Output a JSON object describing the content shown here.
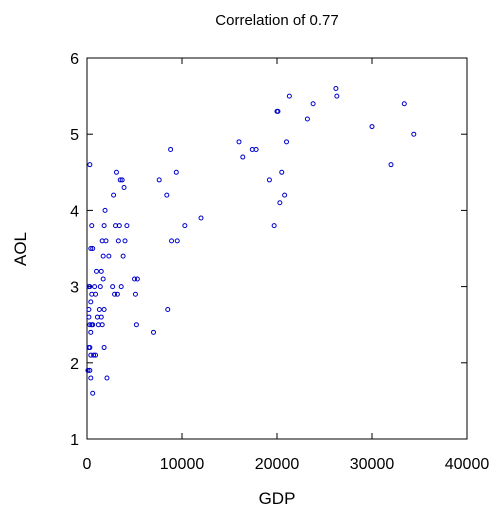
{
  "chart_data": {
    "type": "scatter",
    "title": "Correlation of 0.77",
    "xlabel": "GDP",
    "ylabel": "AOL",
    "xlim": [
      0,
      40000
    ],
    "ylim": [
      1,
      6
    ],
    "xticks": [
      0,
      10000,
      20000,
      30000,
      40000
    ],
    "yticks": [
      1,
      2,
      3,
      4,
      5,
      6
    ],
    "grid": false,
    "marker_color": "#0000cc",
    "points": [
      [
        300,
        4.6
      ],
      [
        500,
        3.8
      ],
      [
        400,
        3.5
      ],
      [
        600,
        3.5
      ],
      [
        200,
        3.0
      ],
      [
        300,
        3.0
      ],
      [
        500,
        2.9
      ],
      [
        400,
        2.8
      ],
      [
        200,
        2.7
      ],
      [
        300,
        2.5
      ],
      [
        500,
        2.5
      ],
      [
        600,
        2.5
      ],
      [
        400,
        2.4
      ],
      [
        200,
        2.2
      ],
      [
        300,
        2.2
      ],
      [
        400,
        2.1
      ],
      [
        700,
        2.1
      ],
      [
        300,
        1.9
      ],
      [
        100,
        1.9
      ],
      [
        400,
        1.8
      ],
      [
        600,
        1.6
      ],
      [
        200,
        2.6
      ],
      [
        800,
        3.0
      ],
      [
        900,
        2.9
      ],
      [
        1000,
        3.2
      ],
      [
        1100,
        2.6
      ],
      [
        1200,
        2.5
      ],
      [
        1300,
        2.7
      ],
      [
        1500,
        2.6
      ],
      [
        1600,
        2.5
      ],
      [
        1700,
        3.4
      ],
      [
        1800,
        3.8
      ],
      [
        1900,
        4.0
      ],
      [
        1600,
        3.6
      ],
      [
        1700,
        3.1
      ],
      [
        2000,
        3.6
      ],
      [
        1500,
        3.2
      ],
      [
        1800,
        2.7
      ],
      [
        900,
        2.1
      ],
      [
        1400,
        3.0
      ],
      [
        2100,
        1.8
      ],
      [
        1800,
        2.2
      ],
      [
        2300,
        3.4
      ],
      [
        2700,
        3.0
      ],
      [
        3000,
        3.8
      ],
      [
        3100,
        4.5
      ],
      [
        3400,
        3.8
      ],
      [
        3300,
        3.6
      ],
      [
        3500,
        4.4
      ],
      [
        3700,
        4.4
      ],
      [
        3800,
        3.4
      ],
      [
        3600,
        3.0
      ],
      [
        3900,
        4.3
      ],
      [
        4000,
        3.6
      ],
      [
        4200,
        3.8
      ],
      [
        3200,
        2.9
      ],
      [
        2900,
        2.9
      ],
      [
        2800,
        4.2
      ],
      [
        5000,
        3.1
      ],
      [
        5300,
        3.1
      ],
      [
        5100,
        2.9
      ],
      [
        5200,
        2.5
      ],
      [
        7000,
        2.4
      ],
      [
        8500,
        2.7
      ],
      [
        7600,
        4.4
      ],
      [
        8400,
        4.2
      ],
      [
        8800,
        4.8
      ],
      [
        9400,
        4.5
      ],
      [
        8900,
        3.6
      ],
      [
        9500,
        3.6
      ],
      [
        10300,
        3.8
      ],
      [
        12000,
        3.9
      ],
      [
        16000,
        4.9
      ],
      [
        16400,
        4.7
      ],
      [
        17400,
        4.8
      ],
      [
        17800,
        4.8
      ],
      [
        19200,
        4.4
      ],
      [
        19700,
        3.8
      ],
      [
        20300,
        4.1
      ],
      [
        20500,
        4.5
      ],
      [
        21000,
        4.9
      ],
      [
        20800,
        4.2
      ],
      [
        20000,
        5.3
      ],
      [
        20100,
        5.3
      ],
      [
        21300,
        5.5
      ],
      [
        23200,
        5.2
      ],
      [
        23800,
        5.4
      ],
      [
        26200,
        5.6
      ],
      [
        26300,
        5.5
      ],
      [
        30000,
        5.1
      ],
      [
        32000,
        4.6
      ],
      [
        33400,
        5.4
      ],
      [
        34400,
        5.0
      ]
    ]
  }
}
